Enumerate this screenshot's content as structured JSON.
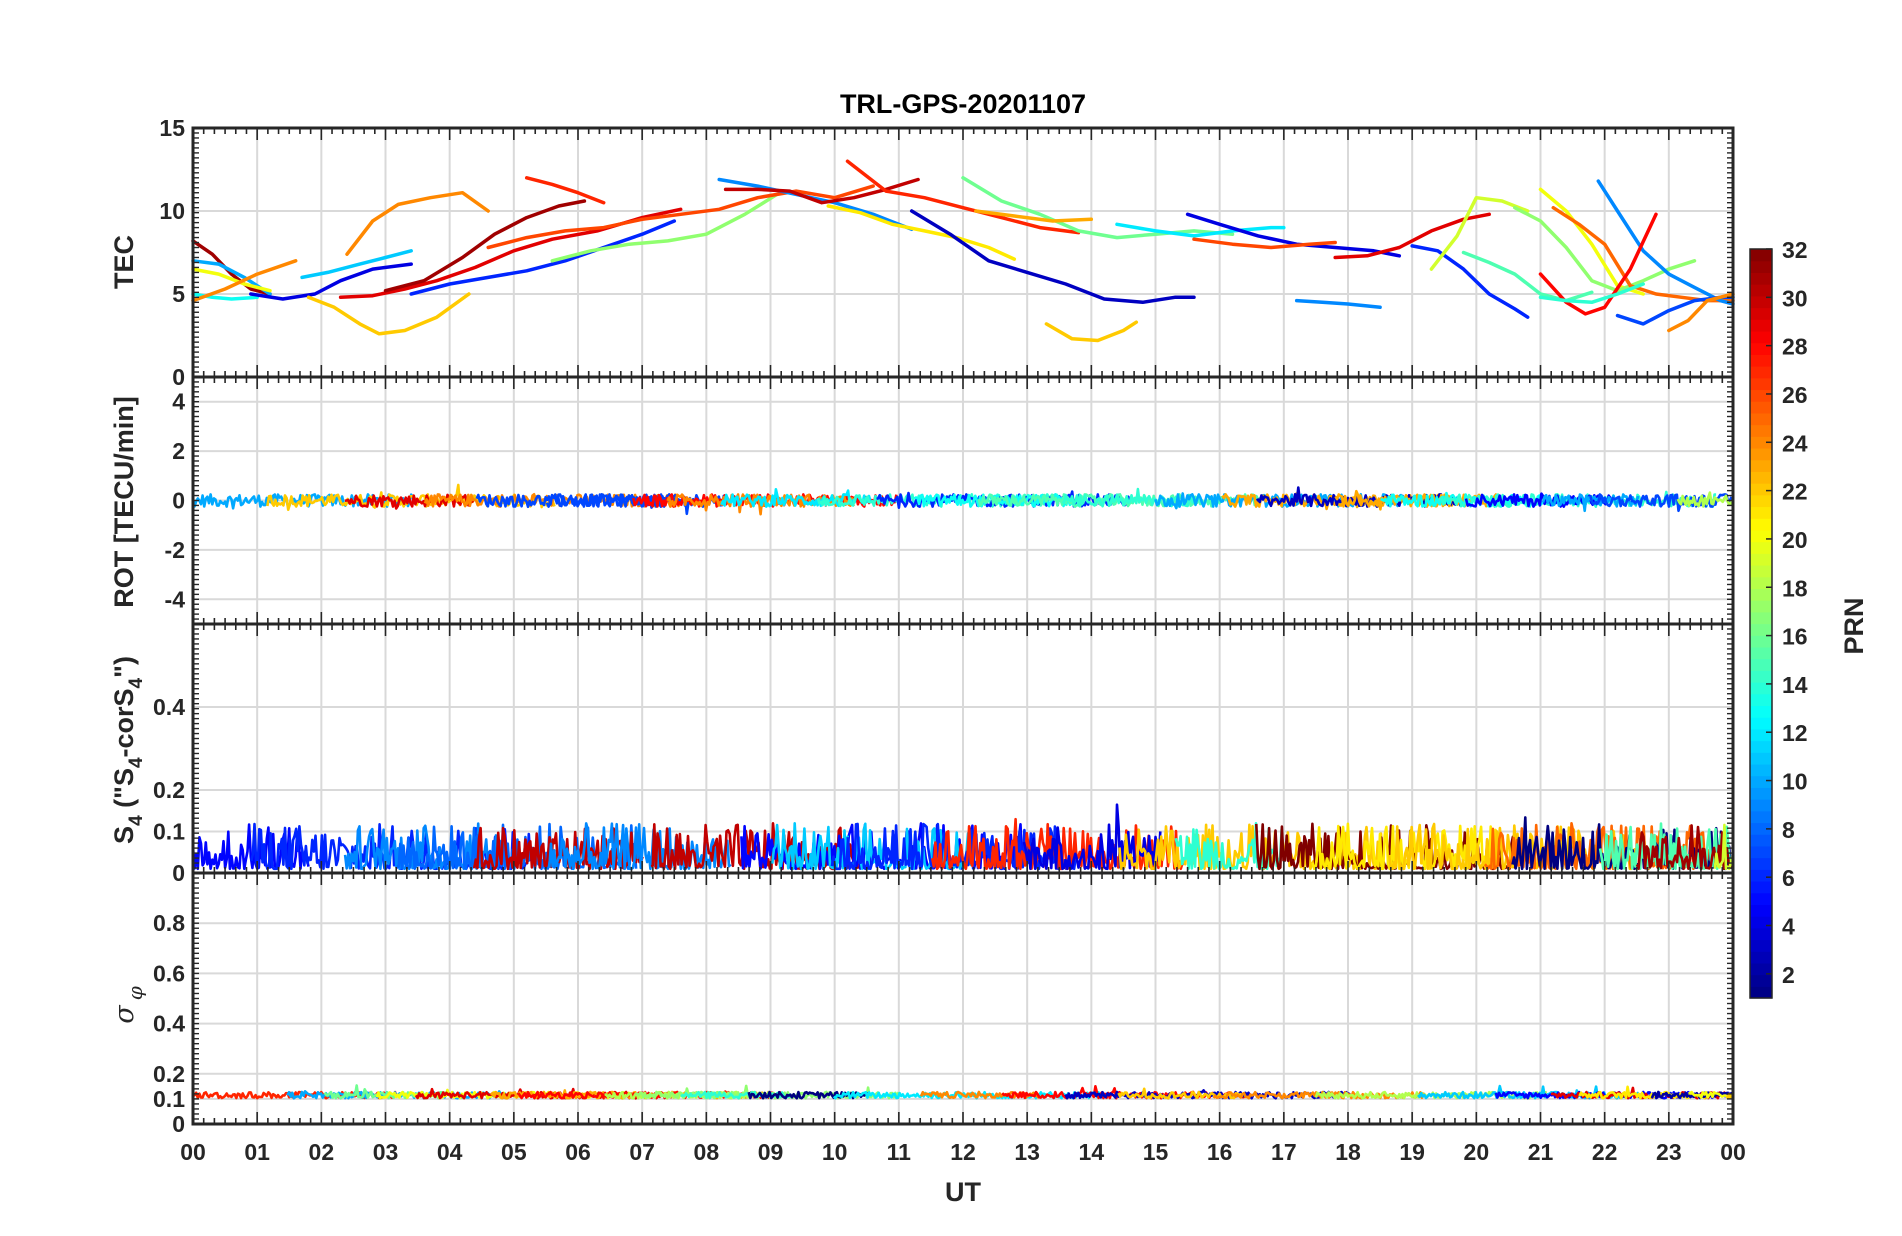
{
  "title": "TRL-GPS-20201107",
  "colors": {
    "background": "#ffffff",
    "axis": "#262626",
    "grid": "#d9d9d9",
    "colormap": "jet"
  },
  "chart_data": [
    {
      "type": "line",
      "panel": "TEC",
      "ylabel": "TEC",
      "xlim": [
        0,
        24
      ],
      "ylim": [
        0,
        15
      ],
      "yticks": [
        0,
        5,
        10,
        15
      ],
      "ytick_labels": [
        "0",
        "5",
        "10",
        "15"
      ],
      "grid": true,
      "series": [
        {
          "prn": 31,
          "x": [
            0,
            0.3,
            0.6,
            0.9,
            1.2
          ],
          "y": [
            8.2,
            7.4,
            6.2,
            5.3,
            5.0
          ]
        },
        {
          "prn": 10,
          "x": [
            0,
            0.4,
            0.8,
            1.2
          ],
          "y": [
            7.0,
            6.8,
            6.0,
            5.0
          ]
        },
        {
          "prn": 20,
          "x": [
            0,
            0.4,
            0.8,
            1.2
          ],
          "y": [
            6.5,
            6.2,
            5.6,
            5.2
          ]
        },
        {
          "prn": 13,
          "x": [
            0,
            0.3,
            0.6,
            1.0
          ],
          "y": [
            5.0,
            4.8,
            4.7,
            4.8
          ]
        },
        {
          "prn": 24,
          "x": [
            0,
            0.5,
            1.0,
            1.6
          ],
          "y": [
            4.6,
            5.3,
            6.2,
            7.0
          ]
        },
        {
          "prn": 4,
          "x": [
            0.9,
            1.4,
            1.9,
            2.3,
            2.8,
            3.4
          ],
          "y": [
            5.0,
            4.7,
            5.0,
            5.8,
            6.5,
            6.8
          ]
        },
        {
          "prn": 22,
          "x": [
            1.8,
            2.2,
            2.6,
            2.9,
            3.3,
            3.8,
            4.3
          ],
          "y": [
            4.8,
            4.2,
            3.2,
            2.6,
            2.8,
            3.6,
            5.0
          ]
        },
        {
          "prn": 24,
          "x": [
            2.4,
            2.8,
            3.2,
            3.7,
            4.2,
            4.6
          ],
          "y": [
            7.4,
            9.4,
            10.4,
            10.8,
            11.1,
            10.0
          ]
        },
        {
          "prn": 11,
          "x": [
            1.7,
            2.1,
            2.6,
            3.0,
            3.4
          ],
          "y": [
            6.0,
            6.3,
            6.8,
            7.2,
            7.6
          ]
        },
        {
          "prn": 29,
          "x": [
            2.3,
            2.8,
            3.3,
            3.8,
            4.4,
            5.0,
            5.6,
            6.3,
            7.0,
            7.6
          ],
          "y": [
            4.8,
            4.9,
            5.3,
            5.8,
            6.6,
            7.6,
            8.3,
            8.8,
            9.6,
            10.1
          ]
        },
        {
          "prn": 31,
          "x": [
            3.0,
            3.6,
            4.2,
            4.7,
            5.2,
            5.7,
            6.1
          ],
          "y": [
            5.2,
            5.8,
            7.2,
            8.6,
            9.6,
            10.3,
            10.6
          ]
        },
        {
          "prn": 27,
          "x": [
            5.2,
            5.6,
            6.0,
            6.4
          ],
          "y": [
            12.0,
            11.6,
            11.1,
            10.5
          ]
        },
        {
          "prn": 6,
          "x": [
            3.4,
            4.0,
            4.6,
            5.2,
            5.8,
            6.4,
            7.0,
            7.5
          ],
          "y": [
            5.0,
            5.6,
            6.0,
            6.4,
            7.0,
            7.8,
            8.6,
            9.4
          ]
        },
        {
          "prn": 17,
          "x": [
            5.6,
            6.2,
            6.8,
            7.4,
            8.0,
            8.6,
            9.1
          ],
          "y": [
            7.0,
            7.6,
            8.0,
            8.2,
            8.6,
            9.8,
            11.0
          ]
        },
        {
          "prn": 26,
          "x": [
            4.6,
            5.2,
            5.8,
            6.4,
            7.0,
            7.6,
            8.2,
            8.8,
            9.4,
            10.0,
            10.6
          ],
          "y": [
            7.8,
            8.4,
            8.8,
            9.0,
            9.5,
            9.8,
            10.1,
            10.8,
            11.2,
            10.8,
            11.5
          ]
        },
        {
          "prn": 9,
          "x": [
            8.2,
            8.8,
            9.4,
            10.0,
            10.6,
            11.2
          ],
          "y": [
            11.9,
            11.5,
            11.0,
            10.5,
            9.8,
            8.9
          ]
        },
        {
          "prn": 30,
          "x": [
            8.3,
            8.8,
            9.3,
            9.8,
            10.3,
            10.8,
            11.3
          ],
          "y": [
            11.3,
            11.3,
            11.2,
            10.5,
            10.8,
            11.3,
            11.9
          ]
        },
        {
          "prn": 21,
          "x": [
            9.9,
            10.4,
            10.9,
            11.4,
            11.9,
            12.4,
            12.8
          ],
          "y": [
            10.3,
            9.9,
            9.2,
            8.8,
            8.4,
            7.8,
            7.1
          ]
        },
        {
          "prn": 3,
          "x": [
            11.2,
            11.8,
            12.4,
            13.0,
            13.6,
            14.2,
            14.8,
            15.3,
            15.6
          ],
          "y": [
            10.0,
            8.6,
            7.0,
            6.3,
            5.6,
            4.7,
            4.5,
            4.8,
            4.8
          ]
        },
        {
          "prn": 27,
          "x": [
            10.2,
            10.8,
            11.4,
            12.0,
            12.6,
            13.2,
            13.8
          ],
          "y": [
            13.0,
            11.2,
            10.8,
            10.2,
            9.6,
            9.0,
            8.7
          ]
        },
        {
          "prn": 16,
          "x": [
            12.0,
            12.6,
            13.2,
            13.8,
            14.4,
            15.0,
            15.6,
            16.2
          ],
          "y": [
            12.0,
            10.6,
            9.8,
            8.8,
            8.4,
            8.6,
            8.8,
            8.6
          ]
        },
        {
          "prn": 23,
          "x": [
            12.2,
            12.8,
            13.4,
            14.0
          ],
          "y": [
            10.0,
            9.7,
            9.4,
            9.5
          ]
        },
        {
          "prn": 22,
          "x": [
            13.3,
            13.7,
            14.1,
            14.5,
            14.7
          ],
          "y": [
            3.2,
            2.3,
            2.2,
            2.8,
            3.3
          ]
        },
        {
          "prn": 12,
          "x": [
            14.4,
            15.0,
            15.6,
            16.2,
            16.8,
            17.0
          ],
          "y": [
            9.2,
            8.8,
            8.5,
            8.8,
            9.0,
            9.0
          ]
        },
        {
          "prn": 4,
          "x": [
            15.5,
            16.0,
            16.6,
            17.2,
            17.8,
            18.4,
            18.8
          ],
          "y": [
            9.8,
            9.2,
            8.5,
            8.0,
            7.8,
            7.6,
            7.3
          ]
        },
        {
          "prn": 26,
          "x": [
            15.6,
            16.2,
            16.8,
            17.4,
            17.8
          ],
          "y": [
            8.3,
            8.0,
            7.8,
            8.0,
            8.1
          ]
        },
        {
          "prn": 9,
          "x": [
            17.2,
            17.6,
            18.0,
            18.5
          ],
          "y": [
            4.6,
            4.5,
            4.4,
            4.2
          ]
        },
        {
          "prn": 29,
          "x": [
            17.8,
            18.3,
            18.8,
            19.3,
            19.8,
            20.2
          ],
          "y": [
            7.2,
            7.3,
            7.8,
            8.8,
            9.5,
            9.8
          ]
        },
        {
          "prn": 6,
          "x": [
            19.0,
            19.4,
            19.8,
            20.2,
            20.6,
            20.8
          ],
          "y": [
            7.9,
            7.6,
            6.5,
            5.0,
            4.1,
            3.6
          ]
        },
        {
          "prn": 19,
          "x": [
            19.3,
            19.7,
            20.0,
            20.4,
            20.8
          ],
          "y": [
            6.5,
            8.5,
            10.8,
            10.6,
            10.0
          ]
        },
        {
          "prn": 15,
          "x": [
            19.8,
            20.2,
            20.6,
            21.0,
            21.4,
            21.8
          ],
          "y": [
            7.5,
            6.9,
            6.2,
            5.0,
            4.6,
            5.1
          ]
        },
        {
          "prn": 20,
          "x": [
            21.0,
            21.4,
            21.8,
            22.2,
            22.6
          ],
          "y": [
            11.3,
            10.0,
            8.0,
            5.5,
            5.0
          ]
        },
        {
          "prn": 17,
          "x": [
            20.6,
            21.0,
            21.4,
            21.8,
            22.2,
            22.6,
            23.0,
            23.4
          ],
          "y": [
            10.2,
            9.4,
            7.8,
            5.8,
            5.2,
            5.8,
            6.5,
            7.0
          ]
        },
        {
          "prn": 25,
          "x": [
            21.2,
            21.6,
            22.0,
            22.4,
            22.8,
            23.2,
            23.6,
            24.0
          ],
          "y": [
            10.2,
            9.2,
            8.0,
            5.5,
            5.0,
            4.8,
            4.6,
            4.6
          ]
        },
        {
          "prn": 9,
          "x": [
            21.9,
            22.2,
            22.6,
            23.0,
            23.4,
            23.8,
            24.0
          ],
          "y": [
            11.8,
            10.0,
            7.6,
            6.2,
            5.4,
            4.6,
            4.4
          ]
        },
        {
          "prn": 28,
          "x": [
            21.0,
            21.4,
            21.7,
            22.0,
            22.4,
            22.8
          ],
          "y": [
            6.2,
            4.5,
            3.8,
            4.2,
            6.5,
            9.8
          ]
        },
        {
          "prn": 14,
          "x": [
            21.0,
            21.4,
            21.8,
            22.2,
            22.6
          ],
          "y": [
            4.8,
            4.6,
            4.5,
            5.0,
            5.6
          ]
        },
        {
          "prn": 7,
          "x": [
            22.2,
            22.6,
            23.0,
            23.4,
            23.8,
            24.0
          ],
          "y": [
            3.7,
            3.2,
            4.0,
            4.6,
            4.8,
            4.8
          ]
        },
        {
          "prn": 24,
          "x": [
            23.0,
            23.3,
            23.6,
            24.0
          ],
          "y": [
            2.8,
            3.4,
            4.6,
            5.0
          ]
        }
      ]
    },
    {
      "type": "line",
      "panel": "ROT",
      "ylabel": "ROT [TECU/min]",
      "xlim": [
        0,
        24
      ],
      "ylim": [
        -5,
        5
      ],
      "yticks": [
        -4,
        -2,
        0,
        2,
        4
      ],
      "ytick_labels": [
        "-4",
        "-2",
        "0",
        "2",
        "4"
      ],
      "grid": true,
      "description_values": {
        "typical_range": [
          -0.6,
          0.6
        ],
        "center": 0
      }
    },
    {
      "type": "line",
      "panel": "S4",
      "ylabel": "S₄ (\"S₄-corS₄\")",
      "ylabel_parts": [
        "S",
        "4",
        " (\"S",
        "4",
        "-corS",
        "4",
        "\")"
      ],
      "xlim": [
        0,
        24
      ],
      "ylim": [
        0,
        0.6
      ],
      "yticks": [
        0,
        0.1,
        0.2,
        0.4
      ],
      "ytick_labels": [
        "0",
        "0.1",
        "0.2",
        "0.4"
      ],
      "grid": true,
      "description_values": {
        "typical_range": [
          0,
          0.16
        ],
        "max_peak": 0.19
      }
    },
    {
      "type": "line",
      "panel": "sigma_phi",
      "ylabel": "σ φ",
      "ylabel_parts": [
        "σ",
        "φ"
      ],
      "xlim": [
        0,
        24
      ],
      "ylim": [
        0,
        1
      ],
      "yticks": [
        0,
        0.1,
        0.2,
        0.4,
        0.6,
        0.8
      ],
      "ytick_labels": [
        "0",
        "0.1",
        "0.2",
        "0.4",
        "0.6",
        "0.8"
      ],
      "grid": true,
      "description_values": {
        "typical_range": [
          0.1,
          0.16
        ],
        "baseline": 0.12
      }
    }
  ],
  "x_axis": {
    "label": "UT",
    "ticks": [
      0,
      1,
      2,
      3,
      4,
      5,
      6,
      7,
      8,
      9,
      10,
      11,
      12,
      13,
      14,
      15,
      16,
      17,
      18,
      19,
      20,
      21,
      22,
      23,
      24
    ],
    "tick_labels": [
      "00",
      "01",
      "02",
      "03",
      "04",
      "05",
      "06",
      "07",
      "08",
      "09",
      "10",
      "11",
      "12",
      "13",
      "14",
      "15",
      "16",
      "17",
      "18",
      "19",
      "20",
      "21",
      "22",
      "23",
      "00"
    ]
  },
  "colorbar": {
    "label": "PRN",
    "range": [
      1,
      32
    ],
    "ticks": [
      2,
      4,
      6,
      8,
      10,
      12,
      14,
      16,
      18,
      20,
      22,
      24,
      26,
      28,
      30,
      32
    ],
    "tick_labels": [
      "2",
      "4",
      "6",
      "8",
      "10",
      "12",
      "14",
      "16",
      "18",
      "20",
      "22",
      "24",
      "26",
      "28",
      "30",
      "32"
    ]
  }
}
